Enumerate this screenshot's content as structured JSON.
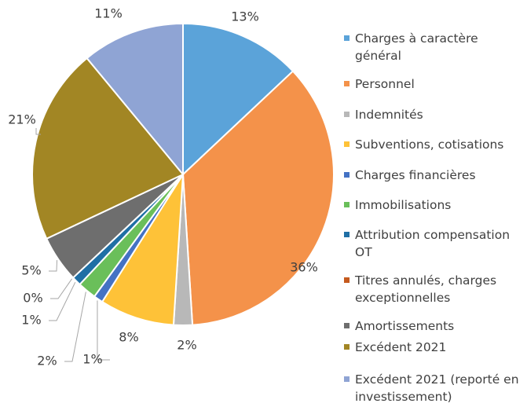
{
  "chart_data": {
    "type": "pie",
    "categories": [
      "Charges à caractère général",
      "Personnel",
      "Indemnités",
      "Subventions, cotisations",
      "Charges financières",
      "Immobilisations",
      "Attribution compensation OT",
      "Titres annulés, charges exceptionnelles",
      "Amortissements",
      "Excédent 2021",
      "Excédent 2021 (reporté en investissement)"
    ],
    "values": [
      13,
      36,
      2,
      8,
      1,
      2,
      1,
      0,
      5,
      21,
      11
    ],
    "value_labels": [
      "13%",
      "36%",
      "2%",
      "8%",
      "1%",
      "2%",
      "1%",
      "0%",
      "5%",
      "21%",
      "11%"
    ],
    "colors": [
      "#5ba3d9",
      "#f4924a",
      "#b8b8b8",
      "#fec238",
      "#4472c4",
      "#6abf5a",
      "#1f6fa5",
      "#c55a1e",
      "#6e6e6e",
      "#a28624",
      "#8fa4d4"
    ],
    "legend": "right"
  }
}
